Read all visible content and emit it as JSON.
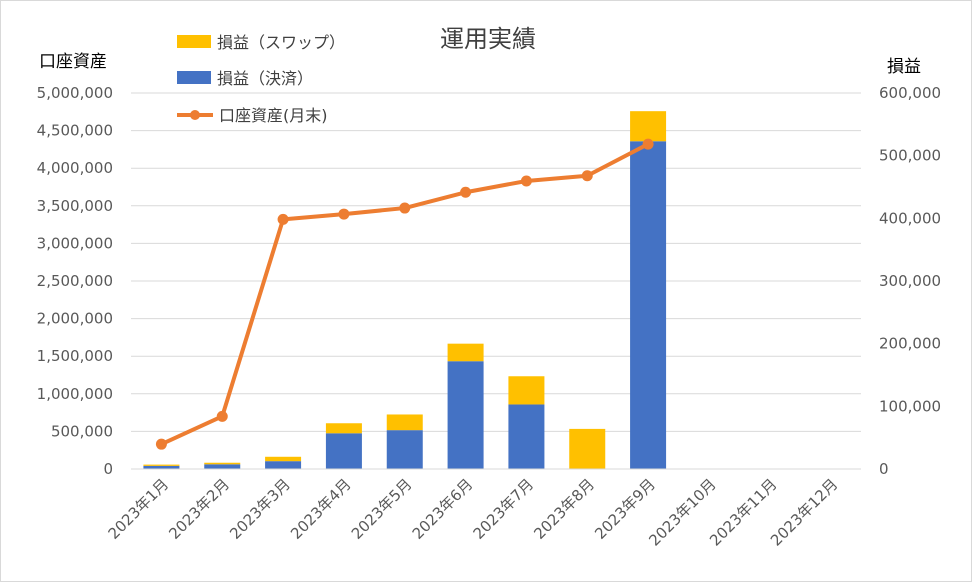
{
  "chart_data": {
    "type": "bar",
    "title": "運用実績",
    "categories": [
      "2023年1月",
      "2023年2月",
      "2023年3月",
      "2023年4月",
      "2023年5月",
      "2023年6月",
      "2023年7月",
      "2023年8月",
      "2023年9月",
      "2023年10月",
      "2023年11月",
      "2023年12月"
    ],
    "left_axis": {
      "label": "口座資産",
      "ylim": [
        0,
        5000000
      ],
      "ticks": [
        "0",
        "500,000",
        "1,000,000",
        "1,500,000",
        "2,000,000",
        "2,500,000",
        "3,000,000",
        "3,500,000",
        "4,000,000",
        "4,500,000",
        "5,000,000"
      ]
    },
    "right_axis": {
      "label": "損益",
      "ylim": [
        0,
        600000
      ],
      "ticks": [
        "0",
        "100,000",
        "200,000",
        "300,000",
        "400,000",
        "500,000",
        "600,000"
      ]
    },
    "series": [
      {
        "name": "損益（決済）",
        "type": "bar",
        "axis": "right",
        "stack": "pl",
        "color": "#4472C4",
        "values": [
          5000,
          7500,
          12500,
          57000,
          62000,
          172000,
          103000,
          0,
          523000,
          null,
          null,
          null
        ]
      },
      {
        "name": "損益（スワップ）",
        "type": "bar",
        "axis": "right",
        "stack": "pl",
        "color": "#FFC000",
        "values": [
          2000,
          2500,
          7000,
          16000,
          25000,
          28000,
          45000,
          64000,
          48000,
          null,
          null,
          null
        ]
      },
      {
        "name": "口座資産(月末)",
        "type": "line",
        "axis": "left",
        "color": "#ED7D31",
        "values": [
          330000,
          700000,
          3320000,
          3390000,
          3470000,
          3680000,
          3830000,
          3900000,
          4320000,
          null,
          null,
          null
        ]
      }
    ],
    "legend": {
      "position": "top-left",
      "order": [
        "損益（スワップ）",
        "損益（決済）",
        "口座資産(月末)"
      ]
    },
    "grid": true
  }
}
